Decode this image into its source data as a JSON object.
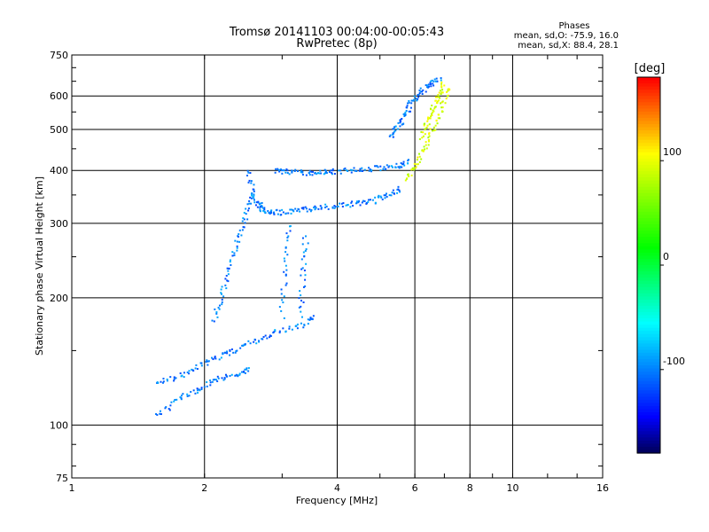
{
  "chart_data": {
    "type": "scatter",
    "title": "Tromsø 20141103 00:04:00-00:05:43",
    "subtitle": "RwPretec (8p)",
    "xlabel": "Frequency [MHz]",
    "ylabel": "Stationary phase Virtual Height [km]",
    "x_scale": "log",
    "y_scale": "log",
    "xlim": [
      1,
      16
    ],
    "ylim": [
      75,
      750
    ],
    "x_ticks": [
      1,
      2,
      4,
      6,
      8,
      10,
      16
    ],
    "y_ticks": [
      75,
      100,
      200,
      300,
      400,
      500,
      600,
      750
    ],
    "grid": true,
    "phase_info": {
      "heading": "Phases",
      "line_o": "mean, sd,O: -75.9, 16.0",
      "line_x": "mean, sd,X:  88.4, 28.1"
    },
    "colorbar": {
      "label": "[deg]",
      "range": [
        -180,
        180
      ],
      "ticks": [
        100,
        0,
        -100
      ],
      "placement": "right"
    },
    "series": [
      {
        "color_value_deg": -100,
        "trace_segments": [
          {
            "x": [
              1.55,
              1.75,
              1.95,
              2.15,
              2.35,
              2.55
            ],
            "y": [
              105,
              115,
              122,
              128,
              132,
              135
            ]
          },
          {
            "x": [
              1.55,
              1.75,
              1.95,
              2.15,
              2.35,
              2.6,
              2.9,
              3.3,
              3.6
            ],
            "y": [
              125,
              130,
              138,
              145,
              150,
              158,
              165,
              172,
              180
            ]
          },
          {
            "x": [
              2.1,
              2.2,
              2.3,
              2.4,
              2.5,
              2.6
            ],
            "y": [
              175,
              205,
              240,
              280,
              320,
              360
            ]
          },
          {
            "x": [
              2.5,
              2.6,
              2.7,
              2.8,
              3.0,
              3.3,
              3.6,
              4.0,
              4.4,
              4.8,
              5.2,
              5.6
            ],
            "y": [
              400,
              340,
              325,
              318,
              318,
              322,
              326,
              330,
              334,
              338,
              348,
              362
            ]
          },
          {
            "x": [
              2.9,
              3.1,
              3.4,
              3.7,
              4.0,
              4.5,
              5.0,
              5.5,
              5.8
            ],
            "y": [
              400,
              398,
              395,
              395,
              398,
              402,
              405,
              410,
              420
            ]
          },
          {
            "x": [
              5.3,
              5.5,
              5.7,
              5.9,
              6.2,
              6.5,
              6.9
            ],
            "y": [
              480,
              510,
              540,
              580,
              610,
              640,
              660
            ]
          },
          {
            "x": [
              3.0,
              3.05,
              3.1
            ],
            "y": [
              180,
              240,
              300
            ]
          },
          {
            "x": [
              3.3,
              3.35,
              3.4
            ],
            "y": [
              180,
              230,
              280
            ]
          }
        ]
      },
      {
        "color_value_deg": 95,
        "trace_segments": [
          {
            "x": [
              5.7,
              6.0,
              6.3,
              6.6,
              6.9,
              7.2
            ],
            "y": [
              380,
              410,
              450,
              500,
              560,
              630
            ]
          },
          {
            "x": [
              6.2,
              6.4,
              6.6,
              6.8,
              7.0
            ],
            "y": [
              480,
              520,
              560,
              600,
              640
            ]
          }
        ]
      }
    ]
  }
}
